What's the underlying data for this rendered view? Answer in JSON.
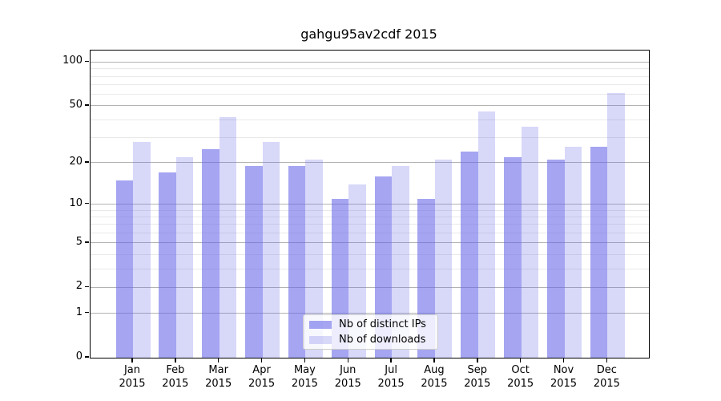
{
  "chart_data": {
    "type": "bar",
    "title": "gahgu95av2cdf 2015",
    "categories": [
      "Jan 2015",
      "Feb 2015",
      "Mar 2015",
      "Apr 2015",
      "May 2015",
      "Jun 2015",
      "Jul 2015",
      "Aug 2015",
      "Sep 2015",
      "Oct 2015",
      "Nov 2015",
      "Dec 2015"
    ],
    "series": [
      {
        "name": "Nb of distinct IPs",
        "color": "rgba(100,100,233,0.58)",
        "values": [
          15,
          17,
          25,
          19,
          19,
          11,
          16,
          11,
          24,
          22,
          21,
          26
        ]
      },
      {
        "name": "Nb of downloads",
        "color": "rgba(100,100,233,0.25)",
        "values": [
          28,
          22,
          42,
          28,
          21,
          14,
          19,
          21,
          46,
          36,
          26,
          61
        ]
      }
    ],
    "xlabel": "",
    "ylabel": "",
    "yscale": "log1p",
    "ylim": [
      0,
      120
    ],
    "yticks": [
      100,
      50,
      20,
      10,
      5,
      2,
      1,
      0
    ],
    "gridlines": {
      "major": [
        1,
        2,
        5,
        10,
        20,
        50,
        100
      ],
      "minor": [
        3,
        4,
        6,
        7,
        8,
        9,
        30,
        40,
        60,
        70,
        80,
        90
      ]
    },
    "grid": true,
    "legend_position": "lower center"
  }
}
